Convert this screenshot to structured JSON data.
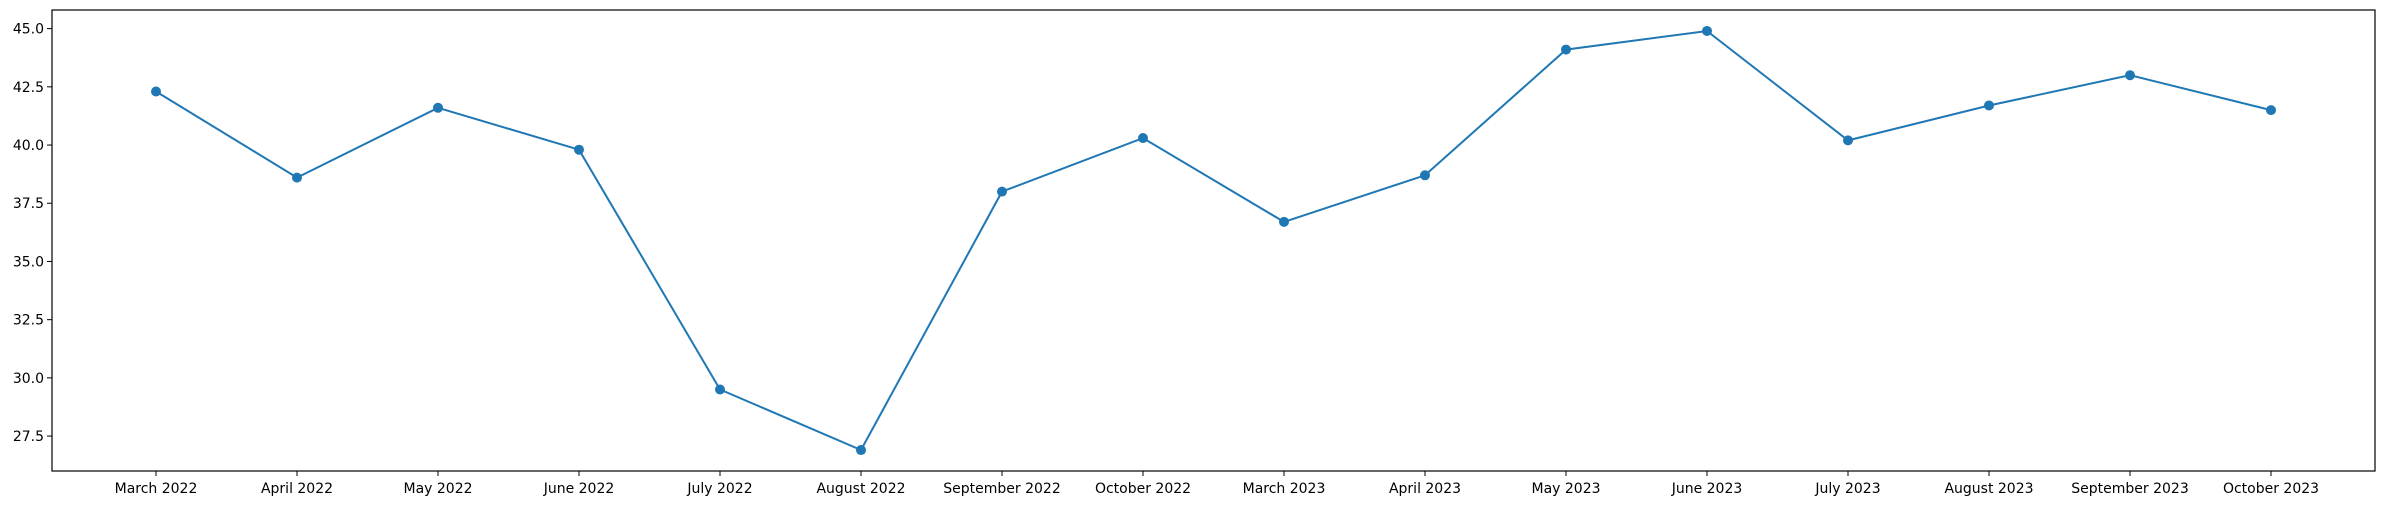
{
  "chart_data": {
    "type": "line",
    "title": "",
    "xlabel": "",
    "ylabel": "",
    "categories": [
      "March 2022",
      "April 2022",
      "May 2022",
      "June 2022",
      "July 2022",
      "August 2022",
      "September 2022",
      "October 2022",
      "March 2023",
      "April 2023",
      "May 2023",
      "June 2023",
      "July 2023",
      "August 2023",
      "September 2023",
      "October 2023"
    ],
    "series": [
      {
        "values": [
          42.3,
          38.6,
          41.6,
          39.8,
          29.5,
          26.9,
          38.0,
          40.3,
          36.7,
          38.7,
          44.1,
          44.9,
          40.2,
          41.7,
          43.0,
          41.5
        ],
        "color": "#1f77b4",
        "marker": "circle"
      }
    ],
    "ylim": [
      26.0,
      45.8
    ],
    "yticks": [
      "27.5",
      "30.0",
      "32.5",
      "35.0",
      "37.5",
      "40.0",
      "42.5",
      "45.0"
    ],
    "grid": false,
    "legend": "none"
  }
}
